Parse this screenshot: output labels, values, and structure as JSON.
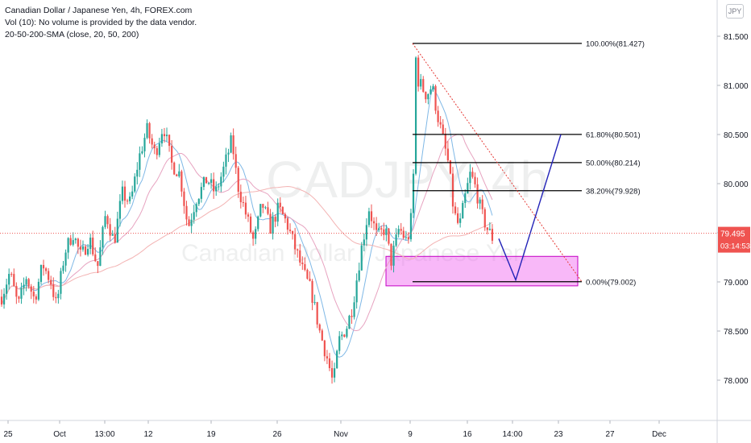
{
  "legend": {
    "title": "Canadian Dollar / Japanese Yen, 4h, FOREX.com",
    "volume_note": "Vol (10): No volume is provided by the data vendor.",
    "sma": "20-50-200-SMA (close, 20, 50, 200)"
  },
  "currency_button": "JPY",
  "watermark": {
    "symbol": "CADJPY, 4h",
    "name": "Canadian Dollar / Japanese Yen"
  },
  "price_badge": {
    "price": "79.495",
    "countdown": "03:14:53",
    "color": "#ef5350"
  },
  "colors": {
    "up": "#26a69a",
    "down": "#ef5350",
    "sma20": "#7fb8e6",
    "sma50": "#e7a3c0",
    "sma200": "#f3b3b3",
    "zone": "#ee55ee",
    "projection": "#2323b8",
    "fib": "#000000"
  },
  "chart_data": {
    "type": "candlestick",
    "ylim": [
      77.6,
      81.7
    ],
    "yticks": [
      "81.500",
      "81.000",
      "80.500",
      "80.000",
      "79.500",
      "79.000",
      "78.500",
      "78.000"
    ],
    "ytick_values": [
      81.5,
      81.0,
      80.5,
      80.0,
      79.5,
      79.0,
      78.5,
      78.0
    ],
    "xticks": [
      "25",
      "Oct",
      "13:00",
      "12",
      "19",
      "26",
      "Nov",
      "9",
      "16",
      "14:00",
      "23",
      "27",
      "Dec"
    ],
    "current_price": 79.495,
    "fib_levels": [
      {
        "label": "100.00%(81.427)",
        "price": 81.427
      },
      {
        "label": "61.80%(80.501)",
        "price": 80.501
      },
      {
        "label": "50.00%(80.214)",
        "price": 80.214
      },
      {
        "label": "38.20%(79.928)",
        "price": 79.928
      },
      {
        "label": "0.00%(79.002)",
        "price": 79.002
      }
    ],
    "demand_zone": {
      "from": 78.96,
      "to": 79.26
    },
    "projection_path": [
      79.44,
      79.02,
      80.5
    ],
    "path": [
      [
        0,
        78.85
      ],
      [
        6,
        79.1
      ],
      [
        12,
        78.75
      ],
      [
        18,
        79.05
      ],
      [
        24,
        78.82
      ],
      [
        30,
        79.18
      ],
      [
        36,
        79.0
      ],
      [
        40,
        78.75
      ],
      [
        46,
        79.3
      ],
      [
        52,
        79.5
      ],
      [
        58,
        79.25
      ],
      [
        64,
        79.45
      ],
      [
        70,
        79.15
      ],
      [
        76,
        79.7
      ],
      [
        82,
        79.4
      ],
      [
        88,
        79.9
      ],
      [
        94,
        79.8
      ],
      [
        100,
        80.25
      ],
      [
        106,
        80.55
      ],
      [
        112,
        80.3
      ],
      [
        118,
        80.6
      ],
      [
        124,
        80.2
      ],
      [
        130,
        80.1
      ],
      [
        136,
        79.55
      ],
      [
        142,
        79.85
      ],
      [
        150,
        80.05
      ],
      [
        156,
        79.9
      ],
      [
        162,
        80.15
      ],
      [
        168,
        80.45
      ],
      [
        172,
        80.0
      ],
      [
        178,
        79.7
      ],
      [
        184,
        79.4
      ],
      [
        190,
        79.8
      ],
      [
        196,
        79.55
      ],
      [
        202,
        79.75
      ],
      [
        208,
        79.6
      ],
      [
        214,
        79.35
      ],
      [
        220,
        79.1
      ],
      [
        226,
        78.9
      ],
      [
        232,
        78.5
      ],
      [
        238,
        78.2
      ],
      [
        242,
        77.95
      ],
      [
        246,
        78.4
      ],
      [
        252,
        78.55
      ],
      [
        256,
        78.75
      ],
      [
        262,
        79.3
      ],
      [
        268,
        79.75
      ],
      [
        274,
        79.45
      ],
      [
        280,
        79.55
      ],
      [
        284,
        79.2
      ],
      [
        290,
        79.55
      ],
      [
        296,
        79.4
      ],
      [
        300,
        79.75
      ],
      [
        302,
        81.3
      ],
      [
        304,
        81.05
      ],
      [
        310,
        80.9
      ],
      [
        314,
        81.0
      ],
      [
        318,
        80.7
      ],
      [
        322,
        80.45
      ],
      [
        326,
        80.2
      ],
      [
        330,
        79.7
      ],
      [
        334,
        79.55
      ],
      [
        338,
        79.85
      ],
      [
        342,
        80.1
      ],
      [
        346,
        79.95
      ],
      [
        350,
        79.7
      ],
      [
        354,
        79.55
      ],
      [
        358,
        79.45
      ]
    ]
  }
}
